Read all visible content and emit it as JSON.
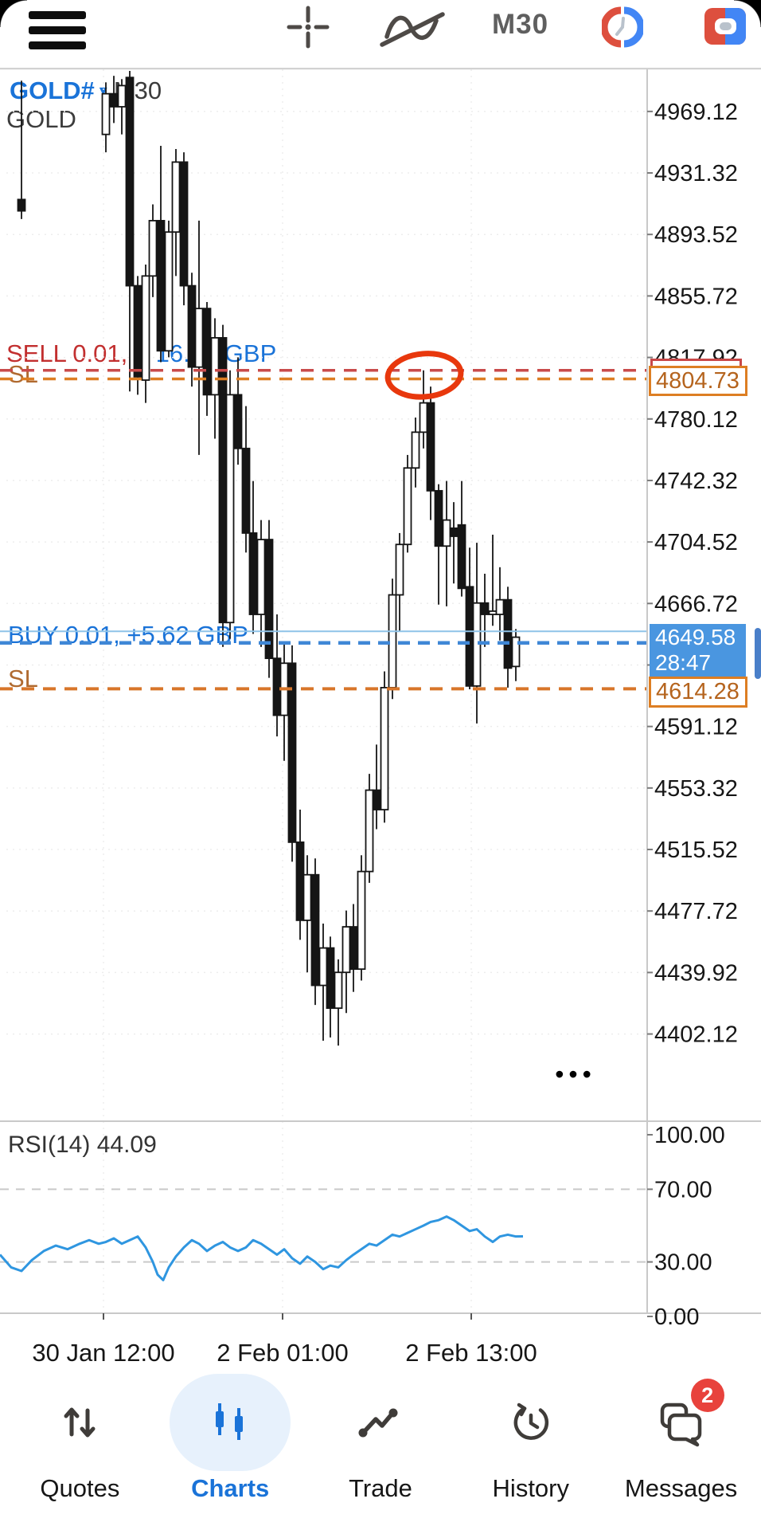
{
  "toolbar": {
    "timeframe_label": "M30",
    "icons": [
      "menu-icon",
      "crosshair-icon",
      "indicators-icon",
      "timeframe-button",
      "trading-sessions-icon",
      "new-order-icon"
    ]
  },
  "symbol_panel": {
    "symbol": "GOLD#",
    "dropdown": "▾",
    "timeframe": "M30",
    "name": "GOLD"
  },
  "trade_overlays": {
    "sell_text": "SELL 0.01,",
    "sell_profit": "+  16.91 GBP",
    "sell_sl_tag": "SL",
    "buy_text": "BUY 0.01,  +5.62 GBP",
    "buy_sl_tag": "SL"
  },
  "price_marks": {
    "sell_stop_price": "4804.73",
    "current_price": "4649.58",
    "bar_countdown": "28:47",
    "buy_stop_price": "4614.28"
  },
  "indicator_header": "RSI(14) 44.09",
  "more_menu": "•••",
  "chart_data": [
    {
      "type": "candlestick",
      "title": "GOLD# M30",
      "ylim": [
        4350,
        4995
      ],
      "y_ticks": [
        4969.12,
        4931.32,
        4893.52,
        4855.72,
        4817.92,
        4780.12,
        4742.32,
        4704.52,
        4666.72,
        4628.92,
        4591.12,
        4553.32,
        4515.52,
        4477.72,
        4439.92,
        4402.12
      ],
      "x_tick_labels": [
        "30 Jan 12:00",
        "2 Feb 01:00",
        "2 Feb 13:00"
      ],
      "grid": "dotted",
      "candles": [
        [
          27,
          4915,
          4988,
          4903,
          4908
        ],
        [
          133,
          4955,
          4987,
          4944,
          4980
        ],
        [
          143,
          4980,
          4991,
          4962,
          4972
        ],
        [
          153,
          4972,
          4989,
          4955,
          4985
        ],
        [
          163,
          4990,
          4994,
          4797,
          4862
        ],
        [
          173,
          4862,
          4868,
          4795,
          4806
        ],
        [
          183,
          4804,
          4875,
          4790,
          4868
        ],
        [
          192,
          4868,
          4912,
          4855,
          4902
        ],
        [
          202,
          4902,
          4948,
          4815,
          4822
        ],
        [
          212,
          4822,
          4902,
          4818,
          4895
        ],
        [
          221,
          4895,
          4946,
          4868,
          4938
        ],
        [
          231,
          4938,
          4944,
          4850,
          4862
        ],
        [
          241,
          4862,
          4870,
          4800,
          4812
        ],
        [
          250,
          4812,
          4902,
          4758,
          4848
        ],
        [
          260,
          4848,
          4852,
          4782,
          4795
        ],
        [
          270,
          4795,
          4842,
          4768,
          4830
        ],
        [
          280,
          4830,
          4838,
          4640,
          4655
        ],
        [
          289,
          4655,
          4810,
          4645,
          4795
        ],
        [
          299,
          4795,
          4818,
          4752,
          4762
        ],
        [
          309,
          4762,
          4788,
          4698,
          4710
        ],
        [
          318,
          4710,
          4742,
          4648,
          4660
        ],
        [
          328,
          4660,
          4718,
          4640,
          4706
        ],
        [
          338,
          4706,
          4718,
          4621,
          4633
        ],
        [
          348,
          4633,
          4660,
          4585,
          4598
        ],
        [
          357,
          4598,
          4642,
          4570,
          4630
        ],
        [
          367,
          4630,
          4641,
          4508,
          4520
        ],
        [
          377,
          4520,
          4540,
          4460,
          4472
        ],
        [
          386,
          4472,
          4512,
          4440,
          4500
        ],
        [
          396,
          4500,
          4510,
          4420,
          4432
        ],
        [
          406,
          4432,
          4470,
          4398,
          4455
        ],
        [
          415,
          4455,
          4462,
          4400,
          4418
        ],
        [
          425,
          4418,
          4448,
          4395,
          4440
        ],
        [
          435,
          4440,
          4478,
          4415,
          4468
        ],
        [
          444,
          4468,
          4482,
          4428,
          4442
        ],
        [
          454,
          4442,
          4512,
          4435,
          4502
        ],
        [
          464,
          4502,
          4562,
          4495,
          4552
        ],
        [
          473,
          4552,
          4580,
          4528,
          4540
        ],
        [
          483,
          4540,
          4625,
          4532,
          4615
        ],
        [
          493,
          4615,
          4682,
          4608,
          4672
        ],
        [
          502,
          4672,
          4710,
          4650,
          4703
        ],
        [
          512,
          4703,
          4758,
          4698,
          4750
        ],
        [
          522,
          4750,
          4781,
          4738,
          4772
        ],
        [
          532,
          4772,
          4810,
          4762,
          4790
        ],
        [
          541,
          4790,
          4800,
          4718,
          4736
        ],
        [
          551,
          4736,
          4740,
          4666,
          4702
        ],
        [
          561,
          4702,
          4742,
          4665,
          4718
        ],
        [
          570,
          4713,
          4729,
          4679,
          4708
        ],
        [
          580,
          4715,
          4742,
          4671,
          4676
        ],
        [
          590,
          4677,
          4701,
          4614,
          4616
        ],
        [
          599,
          4616,
          4704,
          4593,
          4667
        ],
        [
          609,
          4667,
          4685,
          4640,
          4660
        ],
        [
          619,
          4660,
          4709,
          4653,
          4662
        ],
        [
          628,
          4660,
          4689,
          4644,
          4669
        ],
        [
          638,
          4669,
          4677,
          4615,
          4627
        ],
        [
          648,
          4628,
          4651,
          4619,
          4646
        ]
      ],
      "lines": {
        "sell_open": 4810.0,
        "sell_stop": 4804.73,
        "current": 4649.58,
        "buy_open": 4642.5,
        "buy_stop": 4614.28
      },
      "annotation_ellipse": {
        "x": 533,
        "price": 4807
      }
    },
    {
      "type": "line",
      "name": "RSI(14)",
      "value": 44.09,
      "ylim": [
        0,
        100
      ],
      "levels": [
        100,
        70,
        30,
        0
      ],
      "dashed_levels": [
        70,
        30
      ],
      "points": [
        [
          0,
          34
        ],
        [
          14,
          27
        ],
        [
          27,
          25
        ],
        [
          40,
          31
        ],
        [
          55,
          36
        ],
        [
          70,
          39
        ],
        [
          85,
          37
        ],
        [
          100,
          40
        ],
        [
          112,
          42
        ],
        [
          124,
          40
        ],
        [
          133,
          41
        ],
        [
          143,
          43
        ],
        [
          153,
          40
        ],
        [
          163,
          42
        ],
        [
          173,
          44
        ],
        [
          183,
          38
        ],
        [
          192,
          30
        ],
        [
          198,
          23
        ],
        [
          205,
          20
        ],
        [
          212,
          27
        ],
        [
          221,
          33
        ],
        [
          231,
          38
        ],
        [
          241,
          42
        ],
        [
          250,
          40
        ],
        [
          260,
          36
        ],
        [
          270,
          39
        ],
        [
          280,
          41
        ],
        [
          289,
          38
        ],
        [
          299,
          36
        ],
        [
          309,
          38
        ],
        [
          318,
          42
        ],
        [
          328,
          40
        ],
        [
          338,
          37
        ],
        [
          348,
          34
        ],
        [
          357,
          37
        ],
        [
          367,
          32
        ],
        [
          377,
          29
        ],
        [
          386,
          33
        ],
        [
          396,
          30
        ],
        [
          406,
          26
        ],
        [
          415,
          28
        ],
        [
          425,
          27
        ],
        [
          435,
          31
        ],
        [
          444,
          34
        ],
        [
          454,
          37
        ],
        [
          464,
          40
        ],
        [
          473,
          39
        ],
        [
          483,
          42
        ],
        [
          493,
          45
        ],
        [
          502,
          44
        ],
        [
          512,
          46
        ],
        [
          522,
          48
        ],
        [
          532,
          50
        ],
        [
          541,
          52
        ],
        [
          551,
          53
        ],
        [
          561,
          55
        ],
        [
          570,
          53
        ],
        [
          580,
          50
        ],
        [
          590,
          47
        ],
        [
          599,
          48
        ],
        [
          609,
          44
        ],
        [
          619,
          41
        ],
        [
          628,
          44
        ],
        [
          638,
          45
        ],
        [
          648,
          44
        ],
        [
          657,
          44.09
        ]
      ]
    }
  ],
  "time_axis": [
    "30 Jan 12:00",
    "2 Feb 01:00",
    "2 Feb 13:00"
  ],
  "bottom_nav": {
    "items": [
      {
        "label": "Quotes",
        "icon": "arrows-up-down-icon",
        "active": false
      },
      {
        "label": "Charts",
        "icon": "candles-icon",
        "active": true
      },
      {
        "label": "Trade",
        "icon": "trend-dots-icon",
        "active": false
      },
      {
        "label": "History",
        "icon": "clock-history-icon",
        "active": false
      },
      {
        "label": "Messages",
        "icon": "chat-bubbles-icon",
        "active": false,
        "badge": "2"
      }
    ]
  },
  "colors": {
    "accent_blue": "#1a73d8",
    "box_blue": "#4a96e0",
    "sell_red": "#c22f2f",
    "orange": "#dd7e23",
    "annotation_red": "#e8380d",
    "rsi_line": "#2f96e0",
    "badge_red": "#e8423c",
    "session_red": "#dd4f3e",
    "session_blue": "#4286f5"
  }
}
